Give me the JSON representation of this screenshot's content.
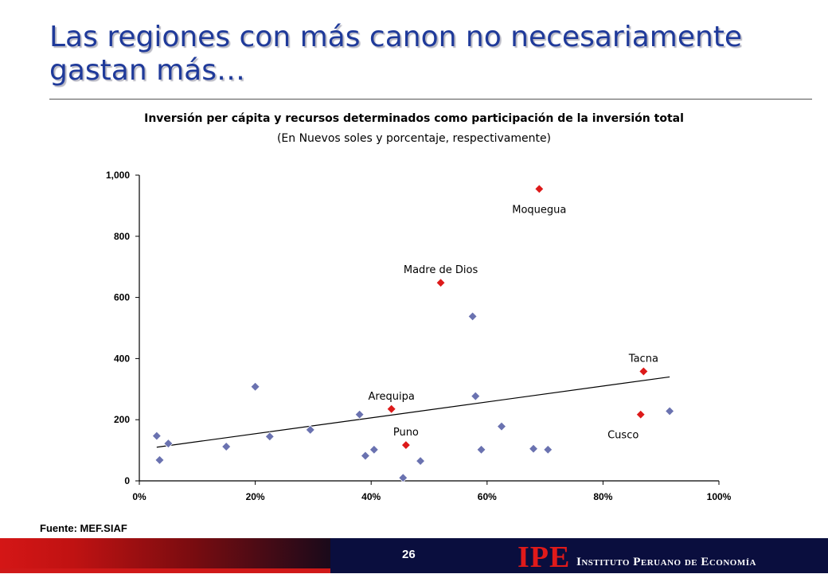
{
  "slide": {
    "title": "Las regiones con más canon no necesariamente gastan más…",
    "source": "Fuente: MEF.SIAF",
    "page_number": "26"
  },
  "footer": {
    "logo_text": "IPE",
    "logo_name": "Instituto Peruano de Economía",
    "colors": {
      "background": "#0a0e3e",
      "accent": "#d01818"
    }
  },
  "chart_data": {
    "type": "scatter",
    "title": "Inversión per cápita y recursos determinados como participación de la inversión total",
    "subtitle": "(En Nuevos soles y porcentaje, respectivamente)",
    "xlabel": "",
    "ylabel": "",
    "xlim": [
      0,
      1
    ],
    "ylim": [
      0,
      1000
    ],
    "x_ticks": [
      0,
      0.2,
      0.4,
      0.6,
      0.8,
      1.0
    ],
    "x_tick_labels": [
      "0%",
      "20%",
      "40%",
      "60%",
      "80%",
      "100%"
    ],
    "y_ticks": [
      0,
      200,
      400,
      600,
      800,
      1000
    ],
    "y_tick_labels": [
      "0",
      "200",
      "400",
      "600",
      "800",
      "1,000"
    ],
    "grid": false,
    "colors": {
      "regular": "#6a72b0",
      "highlight": "#dd1a1a"
    },
    "points": [
      {
        "x": 0.03,
        "y": 147
      },
      {
        "x": 0.035,
        "y": 68
      },
      {
        "x": 0.05,
        "y": 122
      },
      {
        "x": 0.15,
        "y": 112
      },
      {
        "x": 0.2,
        "y": 308
      },
      {
        "x": 0.225,
        "y": 145
      },
      {
        "x": 0.295,
        "y": 167
      },
      {
        "x": 0.38,
        "y": 217
      },
      {
        "x": 0.39,
        "y": 82
      },
      {
        "x": 0.405,
        "y": 102
      },
      {
        "x": 0.455,
        "y": 10
      },
      {
        "x": 0.485,
        "y": 65
      },
      {
        "x": 0.575,
        "y": 538
      },
      {
        "x": 0.58,
        "y": 277
      },
      {
        "x": 0.59,
        "y": 102
      },
      {
        "x": 0.625,
        "y": 178
      },
      {
        "x": 0.68,
        "y": 105
      },
      {
        "x": 0.705,
        "y": 102
      },
      {
        "x": 0.915,
        "y": 228
      },
      {
        "x": 0.69,
        "y": 955,
        "label": "Moquegua",
        "highlight": true,
        "label_pos": "below"
      },
      {
        "x": 0.52,
        "y": 648,
        "label": "Madre de Dios",
        "highlight": true,
        "label_pos": "above"
      },
      {
        "x": 0.87,
        "y": 358,
        "label": "Tacna",
        "highlight": true,
        "label_pos": "above"
      },
      {
        "x": 0.435,
        "y": 235,
        "label": "Arequipa",
        "highlight": true,
        "label_pos": "above"
      },
      {
        "x": 0.46,
        "y": 117,
        "label": "Puno",
        "highlight": true,
        "label_pos": "above"
      },
      {
        "x": 0.865,
        "y": 217,
        "label": "Cusco",
        "highlight": true,
        "label_pos": "below-left"
      }
    ],
    "trendline": {
      "x": [
        0.03,
        0.915
      ],
      "y": [
        110,
        340
      ]
    }
  }
}
